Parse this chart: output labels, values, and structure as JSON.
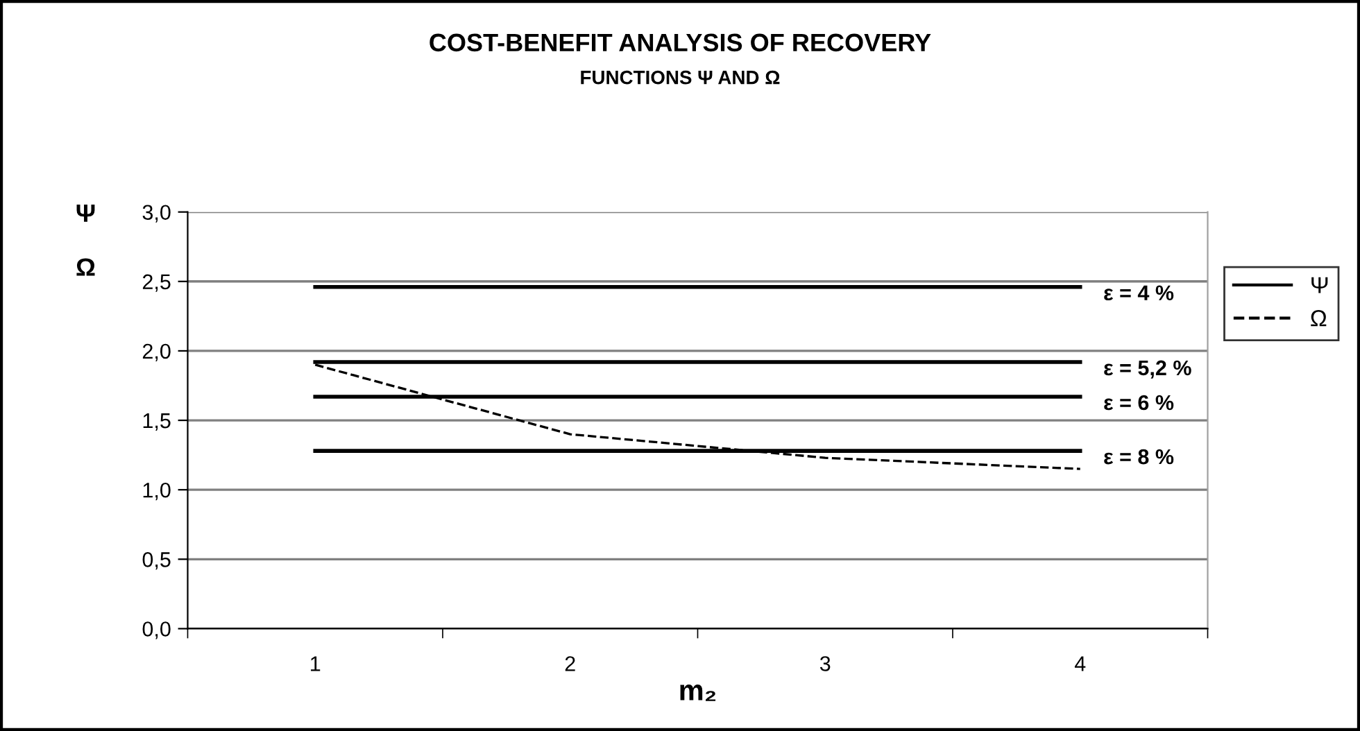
{
  "chart_data": {
    "type": "line",
    "title": "COST-BENEFIT ANALYSIS OF RECOVERY",
    "subtitle": "FUNCTIONS Ψ AND Ω",
    "xlabel": "m₂",
    "ylabel": "Ψ\n\nΩ",
    "categories": [
      "1",
      "2",
      "3",
      "4"
    ],
    "series": [
      {
        "name": "Ψ",
        "color": "#000000",
        "values": [
          2.46,
          2.46,
          2.46,
          2.46
        ]
      },
      {
        "color": "#000000",
        "values": [
          1.92,
          1.92,
          1.92,
          1.92
        ]
      },
      {
        "color": "#000000",
        "values": [
          1.67,
          1.67,
          1.67,
          1.67
        ]
      },
      {
        "color": "#000000",
        "values": [
          1.28,
          1.28,
          1.28,
          1.28
        ]
      },
      {
        "name": "Ω",
        "color": "#000000",
        "values": [
          1.9,
          1.4,
          1.23,
          1.15
        ],
        "line_style": "dashed"
      }
    ],
    "annotations": [
      {
        "text": "ε = 4 %",
        "x": "4",
        "y": 2.46
      },
      {
        "text": "ε = 5,2 %",
        "x": "4",
        "y": 1.92
      },
      {
        "text": "ε = 6 %",
        "x": "4",
        "y": 1.67
      },
      {
        "text": "ε = 8 %",
        "x": "4",
        "y": 1.28
      }
    ],
    "ylim": [
      0,
      3
    ],
    "yticks": [
      {
        "value": 0,
        "label": "0,0"
      },
      {
        "value": 0.5,
        "label": "0,5"
      },
      {
        "value": 1,
        "label": "1,0"
      },
      {
        "value": 1.5,
        "label": "1,5"
      },
      {
        "value": 2,
        "label": "2,0"
      },
      {
        "value": 2.5,
        "label": "2,5"
      },
      {
        "value": 3,
        "label": "3,0"
      }
    ],
    "grid": "y",
    "legend": "right",
    "marker": "none",
    "line_style": "solid"
  }
}
